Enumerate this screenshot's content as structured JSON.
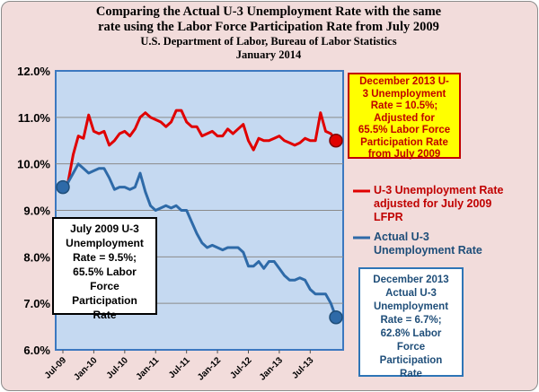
{
  "chart_data": {
    "type": "line",
    "title_lines": [
      "Comparing the Actual U-3 Unemployment Rate  with the same",
      "rate using the Labor Force Participation Rate from July 2009",
      "U.S. Department  of Labor, Bureau of Labor Statistics",
      "January 2014"
    ],
    "ylim": [
      6.0,
      12.0
    ],
    "y_ticks": [
      "6.0%",
      "7.0%",
      "8.0%",
      "9.0%",
      "10.0%",
      "11.0%",
      "12.0%"
    ],
    "x_tick_labels": [
      "Jul-09",
      "Jan-10",
      "Jul-10",
      "Jan-11",
      "Jul-11",
      "Jan-12",
      "Jul-12",
      "Jan-13",
      "Jul-13"
    ],
    "x_start": "Jul-09",
    "x_end": "Dec-13",
    "series": [
      {
        "name": "U-3 Unemployment  Rate adjusted for July 2009 LFPR",
        "color": "#e00000",
        "values": [
          9.5,
          9.6,
          10.2,
          10.6,
          10.55,
          11.05,
          10.7,
          10.65,
          10.7,
          10.4,
          10.5,
          10.65,
          10.7,
          10.6,
          10.75,
          11.0,
          11.1,
          11.0,
          10.95,
          10.9,
          10.8,
          10.9,
          11.15,
          11.15,
          10.9,
          10.8,
          10.8,
          10.6,
          10.65,
          10.7,
          10.6,
          10.6,
          10.75,
          10.65,
          10.75,
          10.85,
          10.5,
          10.3,
          10.55,
          10.5,
          10.5,
          10.55,
          10.6,
          10.5,
          10.45,
          10.4,
          10.45,
          10.55,
          10.5,
          10.5,
          11.1,
          10.7,
          10.65,
          10.5
        ]
      },
      {
        "name": "Actual U-3 Unemployment Rate",
        "color": "#2e6aa8",
        "values": [
          9.5,
          9.6,
          9.8,
          10.0,
          9.9,
          9.8,
          9.85,
          9.9,
          9.9,
          9.7,
          9.45,
          9.5,
          9.5,
          9.45,
          9.5,
          9.8,
          9.4,
          9.1,
          9.0,
          9.05,
          9.1,
          9.05,
          9.1,
          9.0,
          9.0,
          8.75,
          8.5,
          8.3,
          8.2,
          8.25,
          8.2,
          8.15,
          8.2,
          8.2,
          8.2,
          8.1,
          7.8,
          7.8,
          7.9,
          7.75,
          7.9,
          7.9,
          7.75,
          7.6,
          7.5,
          7.5,
          7.55,
          7.5,
          7.3,
          7.2,
          7.2,
          7.2,
          7.0,
          6.7
        ]
      }
    ],
    "annotations": {
      "dec_adjusted_lines": [
        "December 2013 U-",
        "3 Unemployment",
        "Rate = 10.5%;",
        "Adjusted for",
        "65.5% Labor Force",
        "Participation Rate",
        "from July 2009"
      ],
      "jul2009_lines": [
        "July 2009 U-3",
        "Unemployment",
        "Rate = 9.5%;",
        "65.5% Labor",
        "Force",
        "Participation",
        "Rate"
      ],
      "dec_actual_lines": [
        "December 2013",
        "Actual U-3",
        "Unemployment",
        "Rate = 6.7%;",
        "62.8% Labor",
        "Force",
        "Participation",
        "Rate"
      ]
    },
    "legend": {
      "red_lines": [
        "U-3 Unemployment  Rate",
        "adjusted for July 2009",
        "LFPR"
      ],
      "blue_lines": [
        "Actual U-3",
        "Unemployment Rate"
      ]
    },
    "plot_background": "#c5d9f1",
    "plot_border": "#3c78c0",
    "figure_background": "#f2dcdb",
    "marker_points": [
      "start",
      "end"
    ]
  }
}
